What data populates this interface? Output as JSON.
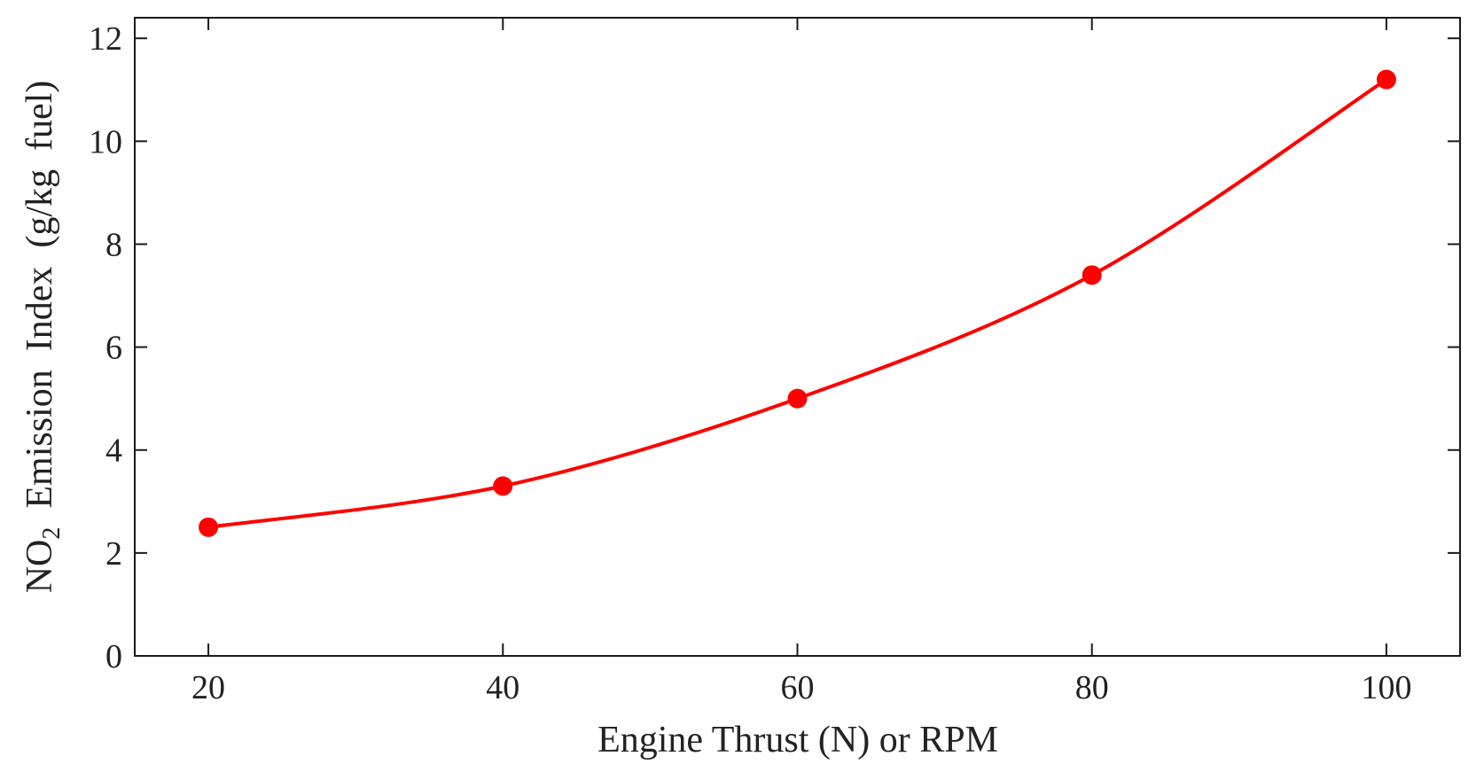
{
  "chart_data": {
    "type": "line",
    "x": [
      20,
      40,
      60,
      80,
      100
    ],
    "series": [
      {
        "values": [
          2.5,
          3.3,
          5.0,
          7.4,
          11.2
        ],
        "color": "#ff0000"
      }
    ],
    "xlabel": "Engine Thrust (N) or RPM",
    "ylabel": {
      "prefix": "NO",
      "subscript": "2",
      "suffix": "  Emission  Index  (g/kg  fuel)"
    },
    "xlim": [
      15,
      105
    ],
    "ylim": [
      0,
      12.4
    ],
    "xticks": [
      "20",
      "40",
      "60",
      "80",
      "100"
    ],
    "yticks": [
      "0",
      "2",
      "4",
      "6",
      "8",
      "10",
      "12"
    ],
    "grid": false,
    "markers": true,
    "smooth": true
  }
}
